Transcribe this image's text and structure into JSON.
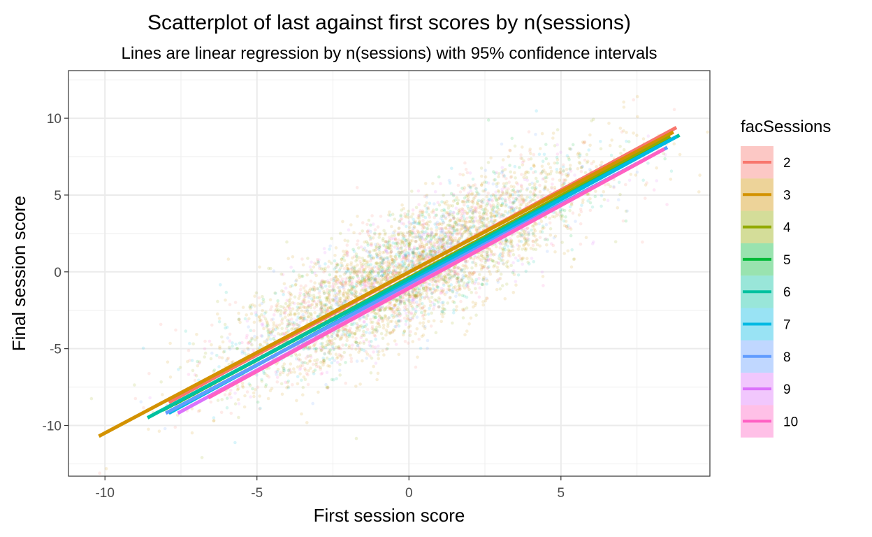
{
  "chart_data": {
    "type": "scatter",
    "title": "Scatterplot of last against first scores by n(sessions)",
    "subtitle": "Lines are linear regression by n(sessions) with 95% confidence intervals",
    "xlabel": "First session score",
    "ylabel": "Final session score",
    "xlim": [
      -11.2,
      9.9
    ],
    "ylim": [
      -13.3,
      13.1
    ],
    "x_ticks": [
      -10,
      -5,
      0,
      5
    ],
    "x_tick_labels": [
      "-10",
      "-5",
      "0",
      "5"
    ],
    "y_ticks": [
      -10,
      -5,
      0,
      5,
      10
    ],
    "y_tick_labels": [
      "-10",
      "-5",
      "0",
      "5",
      "10"
    ],
    "grid": true,
    "legend": {
      "title": "facSessions",
      "position": "right"
    },
    "series": [
      {
        "name": "2",
        "color": "#F8766D",
        "x": [
          -7.9,
          8.8
        ],
        "y": [
          -8.5,
          9.4
        ]
      },
      {
        "name": "3",
        "color": "#D39200",
        "x": [
          -10.2,
          8.7
        ],
        "y": [
          -10.7,
          9.1
        ]
      },
      {
        "name": "4",
        "color": "#93AA00",
        "x": [
          -7.7,
          8.6
        ],
        "y": [
          -8.6,
          8.8
        ]
      },
      {
        "name": "5",
        "color": "#00BA38",
        "x": [
          -8.1,
          8.6
        ],
        "y": [
          -9.0,
          8.6
        ]
      },
      {
        "name": "6",
        "color": "#00C19F",
        "x": [
          -8.6,
          8.9
        ],
        "y": [
          -9.5,
          8.9
        ]
      },
      {
        "name": "7",
        "color": "#00B9E3",
        "x": [
          -7.9,
          8.8
        ],
        "y": [
          -9.2,
          8.8
        ]
      },
      {
        "name": "8",
        "color": "#619CFF",
        "x": [
          -8.0,
          8.5
        ],
        "y": [
          -9.2,
          8.1
        ]
      },
      {
        "name": "9",
        "color": "#DB72FB",
        "x": [
          -7.6,
          8.3
        ],
        "y": [
          -9.2,
          7.9
        ]
      },
      {
        "name": "10",
        "color": "#FF61C3",
        "x": [
          -6.6,
          8.4
        ],
        "y": [
          -8.2,
          8.0
        ]
      }
    ],
    "point_cloud": {
      "x_mean": 0.0,
      "x_sd": 3.0,
      "slope": 1.0,
      "residual_sd": 1.9,
      "opacity": 0.15
    }
  }
}
